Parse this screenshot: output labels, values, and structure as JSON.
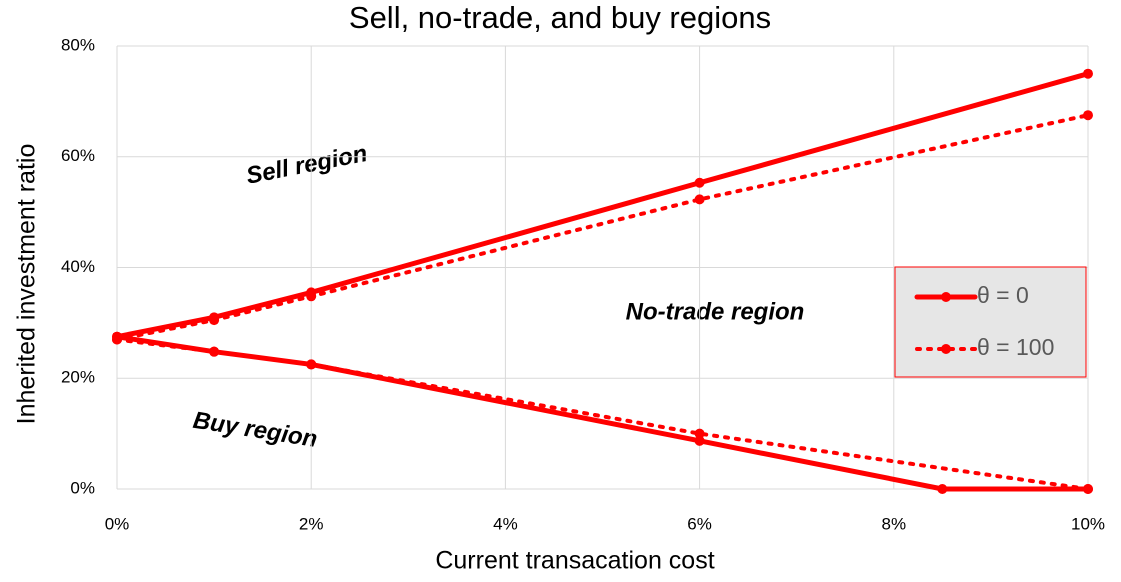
{
  "chart_data": {
    "type": "line",
    "title": "Sell, no-trade, and buy regions",
    "x_label": "Current transacation cost",
    "y_label": "Inherited investment ratio",
    "xlim": [
      0,
      10
    ],
    "ylim": [
      0,
      80
    ],
    "xticks": [
      {
        "value": 0,
        "label": "0%"
      },
      {
        "value": 2,
        "label": "2%"
      },
      {
        "value": 4,
        "label": "4%"
      },
      {
        "value": 6,
        "label": "6%"
      },
      {
        "value": 8,
        "label": "8%"
      },
      {
        "value": 10,
        "label": "10%"
      }
    ],
    "yticks": [
      {
        "value": 0,
        "label": "0%"
      },
      {
        "value": 20,
        "label": "20%"
      },
      {
        "value": 40,
        "label": "40%"
      },
      {
        "value": 60,
        "label": "60%"
      },
      {
        "value": 80,
        "label": "80%"
      }
    ],
    "grid": true,
    "legend": "right",
    "annotations": [
      "Sell region",
      "No-trade  region",
      "Buy region"
    ],
    "series": [
      {
        "name": "θ = 0",
        "color": "#ff0000",
        "style": "solid",
        "lines": [
          {
            "x": [
              0,
              1,
              2,
              6,
              10
            ],
            "values": [
              27.5,
              31,
              35.5,
              55.3,
              75
            ]
          },
          {
            "x": [
              0,
              1,
              2,
              6,
              8.5,
              10
            ],
            "values": [
              27.5,
              24.8,
              22.5,
              8.7,
              0,
              0
            ]
          }
        ]
      },
      {
        "name": "θ = 100",
        "color": "#ff0000",
        "style": "dotted",
        "lines": [
          {
            "x": [
              0,
              1,
              2,
              6,
              10
            ],
            "values": [
              27,
              30.5,
              34.8,
              52.3,
              67.5
            ]
          },
          {
            "x": [
              0,
              1,
              2,
              6,
              10
            ],
            "values": [
              27,
              24.8,
              22.5,
              10,
              0
            ]
          }
        ]
      }
    ]
  }
}
